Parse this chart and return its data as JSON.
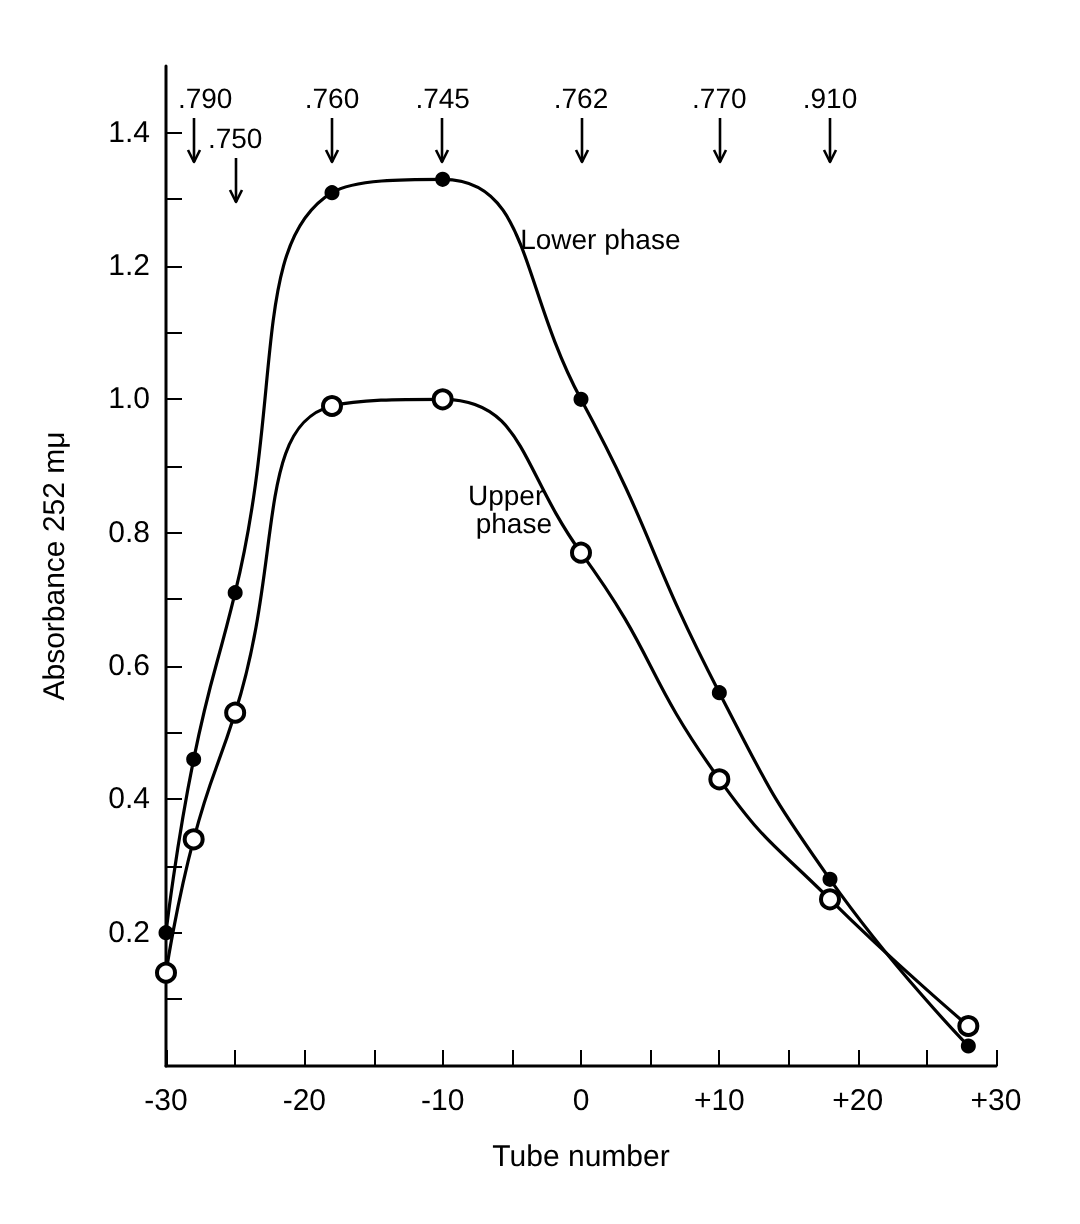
{
  "chart_data": {
    "type": "line",
    "xlabel": "Tube number",
    "ylabel": "Absorbance 252 mμ",
    "xlim": [
      -30,
      30
    ],
    "ylim": [
      0,
      1.5
    ],
    "xticks": [
      -30,
      {
        "value": -25,
        "label": null
      },
      -20,
      {
        "value": -15,
        "label": null
      },
      -10,
      {
        "value": -5,
        "label": null
      },
      0,
      {
        "value": 5,
        "label": null
      },
      {
        "value": 10,
        "label": "+10"
      },
      {
        "value": 15,
        "label": null
      },
      {
        "value": 20,
        "label": "+20"
      },
      {
        "value": 25,
        "label": null
      },
      {
        "value": 30,
        "label": "+30"
      }
    ],
    "yticks": [
      {
        "value": 0.1,
        "label": null
      },
      0.2,
      {
        "value": 0.3,
        "label": null
      },
      0.4,
      {
        "value": 0.5,
        "label": null
      },
      0.6,
      {
        "value": 0.7,
        "label": null
      },
      0.8,
      {
        "value": 0.9,
        "label": null
      },
      {
        "value": 1,
        "label": "1.0"
      },
      {
        "value": 1.1,
        "label": null
      },
      1.2,
      {
        "value": 1.3,
        "label": null
      },
      1.4
    ],
    "x": [
      -30,
      -28,
      -25,
      -18,
      -10,
      0,
      10,
      18,
      28
    ],
    "series": [
      {
        "name": "Lower phase",
        "color": "#000000",
        "marker": "circle",
        "values": [
          0.2,
          0.46,
          0.71,
          1.31,
          1.33,
          1.0,
          0.56,
          0.28,
          0.03
        ]
      },
      {
        "name": "Upper phase",
        "color": "#000000",
        "marker": "circle",
        "values": [
          0.14,
          0.34,
          0.53,
          0.99,
          1.0,
          0.77,
          0.43,
          0.25,
          0.06
        ]
      }
    ],
    "annotations": [
      {
        "text": ".790",
        "x": -28
      },
      {
        "text": ".750",
        "x": -25
      },
      {
        "text": ".760",
        "x": -18
      },
      {
        "text": ".745",
        "x": -10
      },
      {
        "text": ".762",
        "x": 0
      },
      {
        "text": ".770",
        "x": 10
      },
      {
        "text": ".910",
        "x": 18
      }
    ],
    "grid": false,
    "legend": false,
    "line_style": "solid"
  }
}
